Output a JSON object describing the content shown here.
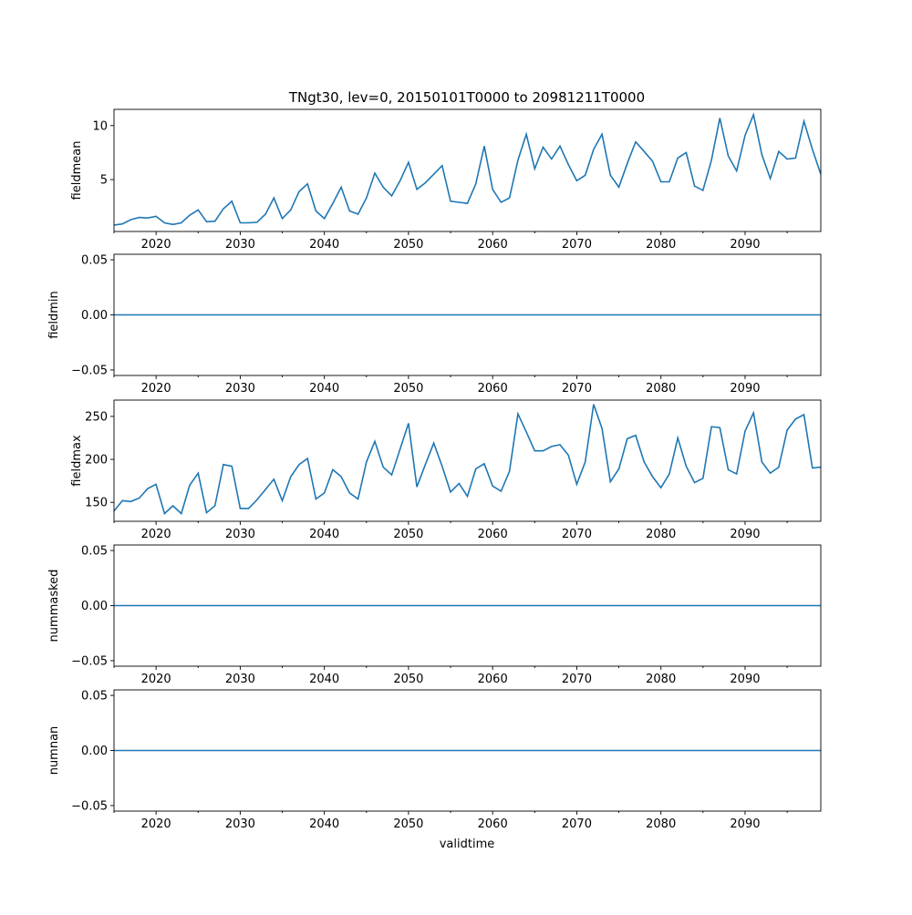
{
  "chart_data": [
    {
      "type": "line",
      "title": "TNgt30, lev=0, 20150101T0000 to 20981211T0000",
      "ylabel": "fieldmean",
      "xlabel": "",
      "xlim": [
        2015,
        2099
      ],
      "ylim": [
        0.2,
        11.5
      ],
      "yticks": [
        5,
        10
      ],
      "ytick_labels": [
        "5",
        "10"
      ],
      "x_start": 2015,
      "values": [
        0.8,
        0.9,
        1.3,
        1.5,
        1.45,
        1.6,
        1.0,
        0.85,
        1.0,
        1.7,
        2.2,
        1.1,
        1.15,
        2.3,
        3.0,
        1.0,
        1.0,
        1.05,
        1.8,
        3.3,
        1.4,
        2.2,
        3.9,
        4.6,
        2.1,
        1.4,
        2.8,
        4.3,
        2.1,
        1.8,
        3.3,
        5.6,
        4.3,
        3.5,
        4.9,
        6.6,
        4.1,
        4.7,
        5.5,
        6.3,
        3.0,
        2.9,
        2.8,
        4.6,
        8.1,
        4.1,
        2.9,
        3.3,
        6.8,
        9.2,
        6.0,
        8.0,
        6.9,
        8.1,
        6.4,
        4.9,
        5.4,
        7.8,
        9.2,
        5.4,
        4.3,
        6.5,
        8.5,
        7.6,
        6.7,
        4.8,
        4.8,
        7.0,
        7.5,
        4.4,
        4.0,
        6.8,
        10.7,
        7.2,
        5.8,
        9.1,
        11.0,
        7.3,
        5.1,
        7.6,
        6.9,
        7.0,
        10.4,
        7.8,
        5.5
      ]
    },
    {
      "type": "line",
      "ylabel": "fieldmin",
      "xlim": [
        2015,
        2099
      ],
      "ylim": [
        -0.055,
        0.055
      ],
      "yticks": [
        -0.05,
        0,
        0.05
      ],
      "ytick_labels": [
        "−0.05",
        "0.00",
        "0.05"
      ],
      "x_start": 2015,
      "constant": 0
    },
    {
      "type": "line",
      "ylabel": "fieldmax",
      "xlim": [
        2015,
        2099
      ],
      "ylim": [
        128,
        269
      ],
      "yticks": [
        150,
        200,
        250
      ],
      "ytick_labels": [
        "150",
        "200",
        "250"
      ],
      "x_start": 2015,
      "values": [
        140,
        152,
        151,
        155,
        166,
        171,
        137,
        146,
        137,
        170,
        184,
        138,
        146,
        194,
        192,
        143,
        143,
        153,
        165,
        177,
        152,
        180,
        194,
        201,
        154,
        161,
        188,
        180,
        161,
        154,
        197,
        221,
        191,
        182,
        212,
        242,
        168,
        194,
        219,
        192,
        162,
        172,
        157,
        189,
        195,
        169,
        163,
        186,
        253,
        232,
        210,
        210,
        215,
        217,
        205,
        171,
        197,
        264,
        236,
        174,
        189,
        224,
        228,
        197,
        180,
        167,
        183,
        225,
        192,
        173,
        178,
        238,
        237,
        188,
        183,
        233,
        254,
        197,
        184,
        191,
        234,
        247,
        252,
        190,
        191
      ]
    },
    {
      "type": "line",
      "ylabel": "nummasked",
      "xlim": [
        2015,
        2099
      ],
      "ylim": [
        -0.055,
        0.055
      ],
      "yticks": [
        -0.05,
        0,
        0.05
      ],
      "ytick_labels": [
        "−0.05",
        "0.00",
        "0.05"
      ],
      "x_start": 2015,
      "constant": 0
    },
    {
      "type": "line",
      "ylabel": "numnan",
      "xlabel": "validtime",
      "xlim": [
        2015,
        2099
      ],
      "ylim": [
        -0.055,
        0.055
      ],
      "yticks": [
        -0.05,
        0,
        0.05
      ],
      "ytick_labels": [
        "−0.05",
        "0.00",
        "0.05"
      ],
      "x_start": 2015,
      "constant": 0
    }
  ],
  "xticks": [
    2020,
    2030,
    2040,
    2050,
    2060,
    2070,
    2080,
    2090
  ],
  "xtick_labels": [
    "2020",
    "2030",
    "2040",
    "2050",
    "2060",
    "2070",
    "2080",
    "2090"
  ],
  "line_color": "#1f77b4"
}
